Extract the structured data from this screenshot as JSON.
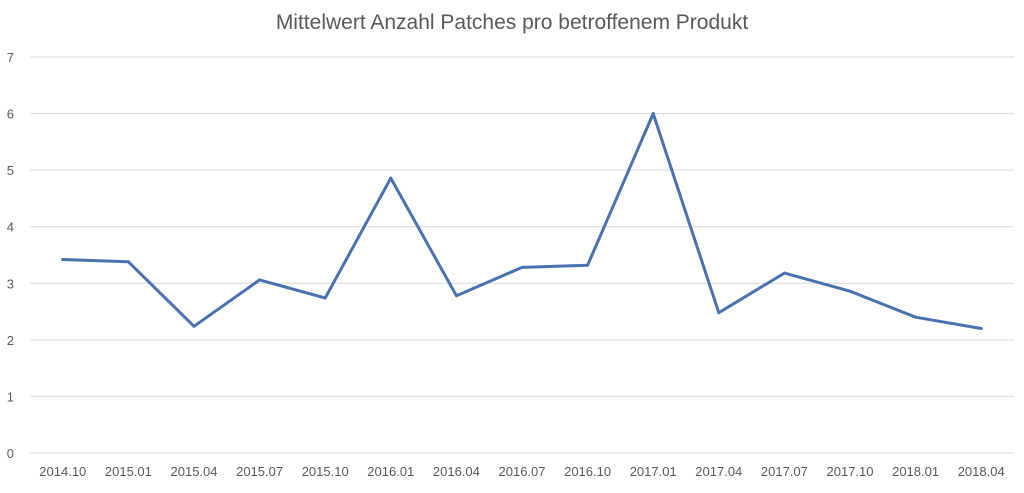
{
  "chart_data": {
    "type": "line",
    "title": "Mittelwert Anzahl Patches pro betroffenem Produkt",
    "xlabel": "",
    "ylabel": "",
    "categories": [
      "2014.10",
      "2015.01",
      "2015.04",
      "2015.07",
      "2015.10",
      "2016.01",
      "2016.04",
      "2016.07",
      "2016.10",
      "2017.01",
      "2017.04",
      "2017.07",
      "2017.10",
      "2018.01",
      "2018.04"
    ],
    "series": [
      {
        "values": [
          3.42,
          3.38,
          2.24,
          3.06,
          2.74,
          4.86,
          2.78,
          3.28,
          3.32,
          6.0,
          2.48,
          3.18,
          2.86,
          2.4,
          2.2
        ]
      }
    ],
    "ylim": [
      0,
      7
    ],
    "yticks": [
      "0",
      "1",
      "2",
      "3",
      "4",
      "5",
      "6",
      "7"
    ],
    "grid": true,
    "legend": "none",
    "colors": {
      "line": "#4a72b0",
      "grid": "#d9d9d9",
      "text": "#595959"
    }
  }
}
